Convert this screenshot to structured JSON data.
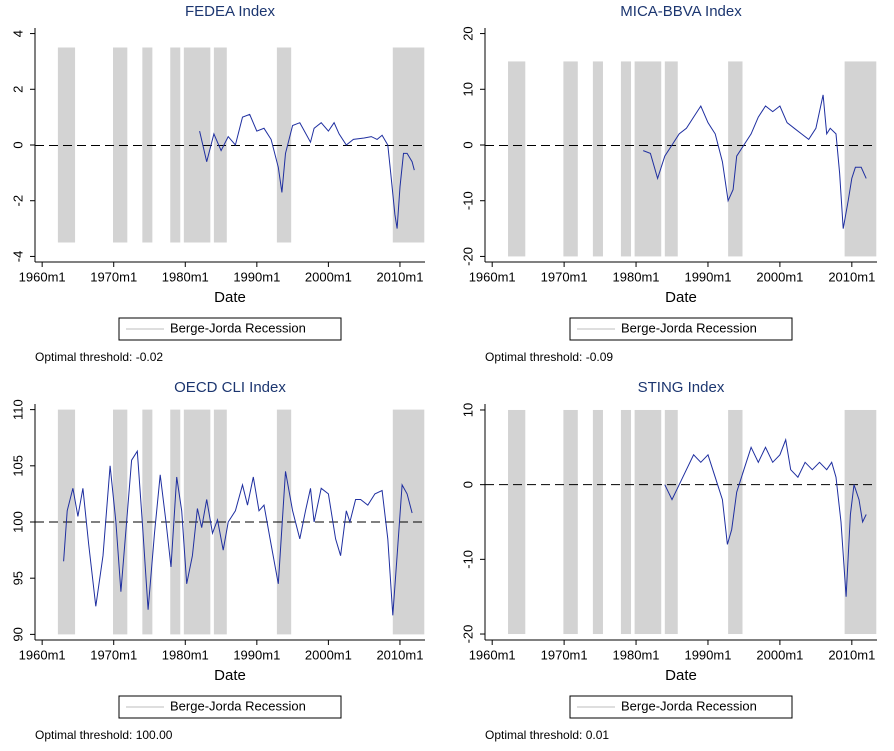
{
  "chart_data": [
    {
      "type": "line",
      "title": "FEDEA Index",
      "xlabel": "Date",
      "xlim": [
        1959,
        2013.5
      ],
      "ylim": [
        -4.2,
        4.2
      ],
      "xticks": [
        {
          "value": 1960,
          "label": "1960m1"
        },
        {
          "value": 1970,
          "label": "1970m1"
        },
        {
          "value": 1980,
          "label": "1980m1"
        },
        {
          "value": 1990,
          "label": "1990m1"
        },
        {
          "value": 2000,
          "label": "2000m1"
        },
        {
          "value": 2010,
          "label": "2010m1"
        }
      ],
      "yticks": [
        -4,
        -2,
        0,
        2,
        4
      ],
      "threshold": -0.02,
      "note": "Optimal threshold: -0.02",
      "legend": "bottom",
      "recession": {
        "name": "Berge-Jorda Recession",
        "color": "#d3d3d3",
        "low": -3.5,
        "high": 3.5,
        "periods": [
          [
            1962.2,
            1964.6
          ],
          [
            1969.9,
            1971.9
          ],
          [
            1974.0,
            1975.4
          ],
          [
            1977.9,
            1979.3
          ],
          [
            1979.8,
            1983.5
          ],
          [
            1984.0,
            1985.8
          ],
          [
            1992.8,
            1994.8
          ],
          [
            2009.0,
            2013.4
          ]
        ]
      },
      "x": [
        1982,
        1983,
        1984,
        1985,
        1986,
        1987,
        1988,
        1989,
        1990,
        1991,
        1992,
        1993,
        1993.5,
        1994,
        1995,
        1996,
        1997.5,
        1998,
        1999,
        2000,
        2000.8,
        2001.5,
        2002.5,
        2003.5,
        2005,
        2006,
        2006.8,
        2007.5,
        2008.3,
        2008.7,
        2009.3,
        2009.6,
        2010,
        2010.5,
        2011,
        2011.7,
        2012
      ],
      "series": [
        {
          "color": "#1f2fa0",
          "values": [
            0.5,
            -0.6,
            0.4,
            -0.2,
            0.3,
            0,
            1.0,
            1.1,
            0.5,
            0.6,
            0.2,
            -0.8,
            -1.7,
            -0.3,
            0.7,
            0.8,
            0.1,
            0.6,
            0.8,
            0.5,
            0.8,
            0.4,
            0.0,
            0.2,
            0.25,
            0.3,
            0.2,
            0.35,
            0,
            -1,
            -2.5,
            -3.0,
            -1.5,
            -0.3,
            -0.3,
            -0.6,
            -0.9
          ]
        }
      ]
    },
    {
      "type": "line",
      "title": "MICA-BBVA Index",
      "xlabel": "Date",
      "xlim": [
        1959,
        2013.5
      ],
      "ylim": [
        -21,
        21
      ],
      "xticks": [
        {
          "value": 1960,
          "label": "1960m1"
        },
        {
          "value": 1970,
          "label": "1970m1"
        },
        {
          "value": 1980,
          "label": "1980m1"
        },
        {
          "value": 1990,
          "label": "1990m1"
        },
        {
          "value": 2000,
          "label": "2000m1"
        },
        {
          "value": 2010,
          "label": "2010m1"
        }
      ],
      "yticks": [
        -20,
        -10,
        0,
        10,
        20
      ],
      "threshold": -0.09,
      "note": "Optimal threshold: -0.09",
      "legend": "bottom",
      "recession": {
        "name": "Berge-Jorda Recession",
        "color": "#d3d3d3",
        "low": -20,
        "high": 15,
        "periods": [
          [
            1962.2,
            1964.6
          ],
          [
            1969.9,
            1971.9
          ],
          [
            1974.0,
            1975.4
          ],
          [
            1977.9,
            1979.3
          ],
          [
            1979.8,
            1983.5
          ],
          [
            1984.0,
            1985.8
          ],
          [
            1992.8,
            1994.8
          ],
          [
            2009.0,
            2013.4
          ]
        ]
      },
      "x": [
        1981,
        1982,
        1983,
        1984,
        1985,
        1986,
        1987,
        1988,
        1989,
        1990,
        1991,
        1992,
        1992.8,
        1993.5,
        1994,
        1995,
        1996,
        1997,
        1998,
        1999,
        2000,
        2001,
        2002,
        2003,
        2004,
        2005,
        2006,
        2006.5,
        2007,
        2007.8,
        2008.3,
        2008.8,
        2009.5,
        2010,
        2010.5,
        2011.3,
        2012
      ],
      "series": [
        {
          "color": "#1f2fa0",
          "values": [
            -1,
            -1.5,
            -6,
            -2,
            0,
            2,
            3,
            5,
            7,
            4,
            2,
            -3,
            -10,
            -8,
            -2,
            0,
            2,
            5,
            7,
            6,
            7,
            4,
            3,
            2,
            1,
            3,
            9,
            2,
            3,
            2,
            -5,
            -15,
            -10,
            -6,
            -4,
            -4,
            -6
          ]
        }
      ]
    },
    {
      "type": "line",
      "title": "OECD CLI Index",
      "xlabel": "Date",
      "xlim": [
        1959,
        2013.5
      ],
      "ylim": [
        89.5,
        110.5
      ],
      "xticks": [
        {
          "value": 1960,
          "label": "1960m1"
        },
        {
          "value": 1970,
          "label": "1970m1"
        },
        {
          "value": 1980,
          "label": "1980m1"
        },
        {
          "value": 1990,
          "label": "1990m1"
        },
        {
          "value": 2000,
          "label": "2000m1"
        },
        {
          "value": 2010,
          "label": "2010m1"
        }
      ],
      "yticks": [
        90,
        95,
        100,
        105,
        110
      ],
      "threshold": 100,
      "note": "Optimal threshold: 100.00",
      "legend": "bottom",
      "recession": {
        "name": "Berge-Jorda Recession",
        "color": "#d3d3d3",
        "low": 90,
        "high": 110,
        "periods": [
          [
            1962.2,
            1964.6
          ],
          [
            1969.9,
            1971.9
          ],
          [
            1974.0,
            1975.4
          ],
          [
            1977.9,
            1979.3
          ],
          [
            1979.8,
            1983.5
          ],
          [
            1984.0,
            1985.8
          ],
          [
            1992.8,
            1994.8
          ],
          [
            2009.0,
            2013.4
          ]
        ]
      },
      "x": [
        1963,
        1963.5,
        1964.3,
        1965,
        1965.7,
        1966.5,
        1967.5,
        1968.5,
        1969.5,
        1970.3,
        1971,
        1971.8,
        1972.5,
        1973.3,
        1974,
        1974.8,
        1975.7,
        1976.5,
        1977.3,
        1978,
        1978.8,
        1979.5,
        1980.2,
        1981,
        1981.7,
        1982.3,
        1983,
        1983.8,
        1984.5,
        1985.3,
        1986,
        1987,
        1988,
        1988.7,
        1989.5,
        1990.3,
        1991,
        1992,
        1993,
        1994,
        1995,
        1996,
        1996.8,
        1997.5,
        1998,
        1999,
        2000,
        2001,
        2001.7,
        2002.5,
        2003,
        2003.8,
        2004.5,
        2005.5,
        2006.5,
        2007.5,
        2008.3,
        2009,
        2009.6,
        2010.3,
        2011,
        2011.7
      ],
      "series": [
        {
          "color": "#1f2fa0",
          "values": [
            96.5,
            101,
            103,
            100.5,
            103,
            98,
            92.5,
            97,
            105,
            100,
            93.8,
            100,
            105.5,
            106.3,
            100,
            92.2,
            99,
            104.2,
            100,
            96,
            104,
            101,
            94.5,
            97,
            101.2,
            99.5,
            102,
            99,
            100.2,
            97.5,
            100,
            101,
            103.3,
            101.5,
            104,
            101,
            101.5,
            98,
            94.5,
            104.5,
            101,
            98.5,
            101,
            103,
            100,
            103,
            102.5,
            98.5,
            97,
            101,
            100,
            102,
            102,
            101.5,
            102.5,
            102.8,
            98.5,
            91.7,
            97,
            103.3,
            102.5,
            100.8
          ]
        }
      ]
    },
    {
      "type": "line",
      "title": "STING Index",
      "xlabel": "Date",
      "xlim": [
        1959,
        2013.5
      ],
      "ylim": [
        -20.8,
        10.8
      ],
      "xticks": [
        {
          "value": 1960,
          "label": "1960m1"
        },
        {
          "value": 1970,
          "label": "1970m1"
        },
        {
          "value": 1980,
          "label": "1980m1"
        },
        {
          "value": 1990,
          "label": "1990m1"
        },
        {
          "value": 2000,
          "label": "2000m1"
        },
        {
          "value": 2010,
          "label": "2010m1"
        }
      ],
      "yticks": [
        -20,
        -10,
        0,
        10
      ],
      "threshold": 0.01,
      "note": "Optimal threshold: 0.01",
      "legend": "bottom",
      "recession": {
        "name": "Berge-Jorda Recession",
        "color": "#d3d3d3",
        "low": -20,
        "high": 10,
        "periods": [
          [
            1962.2,
            1964.6
          ],
          [
            1969.9,
            1971.9
          ],
          [
            1974.0,
            1975.4
          ],
          [
            1977.9,
            1979.3
          ],
          [
            1979.8,
            1983.5
          ],
          [
            1984.0,
            1985.8
          ],
          [
            1992.8,
            1994.8
          ],
          [
            2009.0,
            2013.4
          ]
        ]
      },
      "x": [
        1984,
        1985,
        1986,
        1987,
        1988,
        1989,
        1990,
        1991,
        1992,
        1992.7,
        1993.3,
        1994,
        1995,
        1996,
        1997,
        1998,
        1999,
        2000,
        2000.8,
        2001.5,
        2002.5,
        2003.5,
        2004.5,
        2005.5,
        2006.5,
        2007.2,
        2007.8,
        2008.5,
        2009.2,
        2009.8,
        2010.3,
        2011,
        2011.5,
        2012
      ],
      "series": [
        {
          "color": "#1f2fa0",
          "values": [
            0,
            -2,
            0,
            2,
            4,
            3,
            4,
            1,
            -2,
            -8,
            -6,
            -1,
            2,
            5,
            3,
            5,
            3,
            4,
            6,
            2,
            1,
            3,
            2,
            3,
            2,
            3,
            1,
            -5,
            -15,
            -4,
            0,
            -2,
            -5,
            -4
          ]
        }
      ]
    }
  ]
}
